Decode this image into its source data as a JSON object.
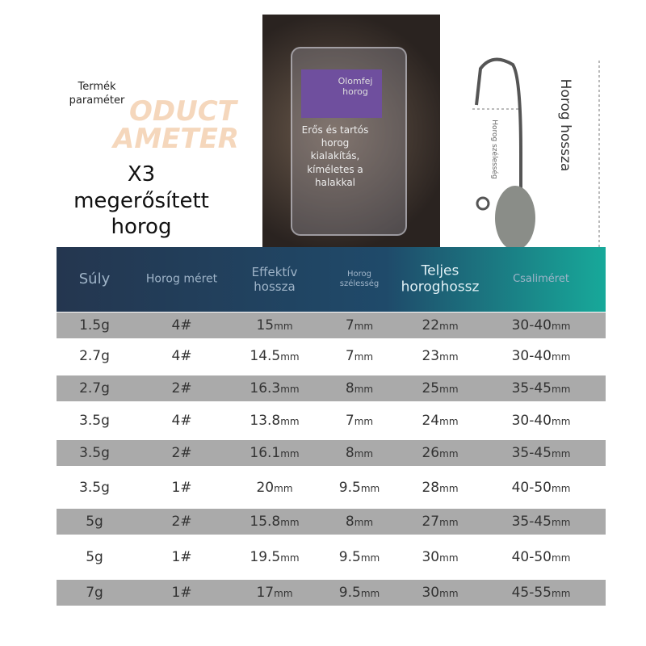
{
  "header": {
    "label": "Termék paraméter",
    "watermark": [
      "ODUCT",
      "AMETER"
    ],
    "title": "X3 megerősített horog"
  },
  "photo": {
    "labels": [
      "Olomfej horog",
      "Erős és tartós horog kialakítás, kíméletes a halakkal"
    ]
  },
  "diagram": {
    "length": "Horog hossza",
    "width": "Horog szélesség"
  },
  "table": {
    "columns": [
      "Súly",
      "Horog méret",
      "Effektív hossza",
      "Horog szélesség",
      "Teljes horoghossz",
      "Csaliméret"
    ],
    "unit": "mm",
    "rows": [
      [
        "1.5g",
        "4#",
        "15",
        "7",
        "22",
        "30-40"
      ],
      [
        "2.7g",
        "4#",
        "14.5",
        "7",
        "23",
        "30-40"
      ],
      [
        "2.7g",
        "2#",
        "16.3",
        "8",
        "25",
        "35-45"
      ],
      [
        "3.5g",
        "4#",
        "13.8",
        "7",
        "24",
        "30-40"
      ],
      [
        "3.5g",
        "2#",
        "16.1",
        "8",
        "26",
        "35-45"
      ],
      [
        "3.5g",
        "1#",
        "20",
        "9.5",
        "28",
        "40-50"
      ],
      [
        "5g",
        "2#",
        "15.8",
        "8",
        "27",
        "35-45"
      ],
      [
        "5g",
        "1#",
        "19.5",
        "9.5",
        "30",
        "40-50"
      ],
      [
        "7g",
        "1#",
        "17",
        "9.5",
        "30",
        "45-55"
      ]
    ]
  }
}
